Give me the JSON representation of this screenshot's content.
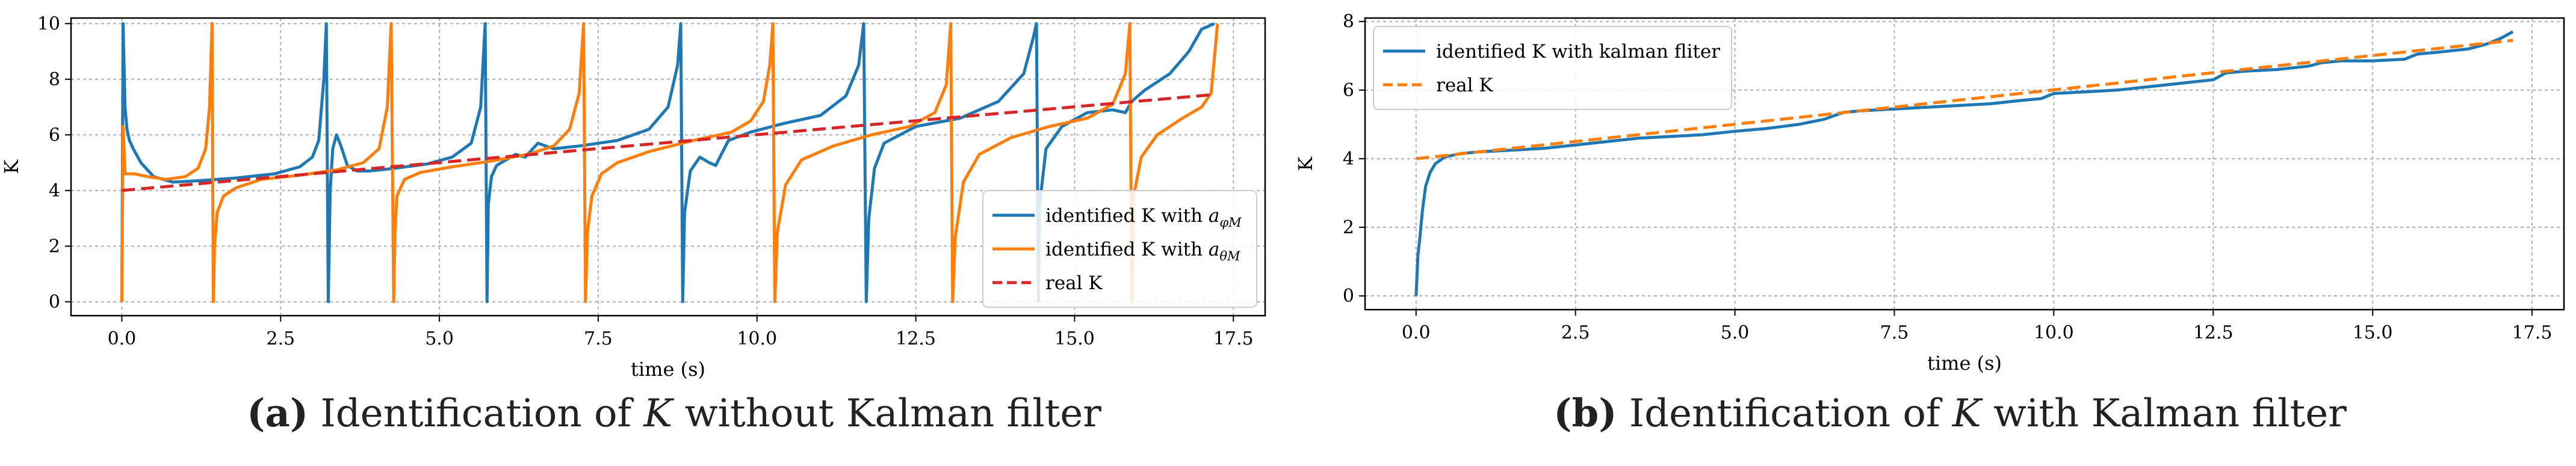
{
  "chart_data": [
    {
      "id": "a",
      "type": "line",
      "xlabel": "time (s)",
      "ylabel": "K",
      "xlim": [
        -0.8,
        18.0
      ],
      "ylim": [
        -0.5,
        10.2
      ],
      "xticks": [
        0.0,
        2.5,
        5.0,
        7.5,
        10.0,
        12.5,
        15.0,
        17.5
      ],
      "xtick_labels": [
        "0.0",
        "2.5",
        "5.0",
        "7.5",
        "10.0",
        "12.5",
        "15.0",
        "17.5"
      ],
      "yticks": [
        0,
        2,
        4,
        6,
        8,
        10
      ],
      "ytick_labels": [
        "0",
        "2",
        "4",
        "6",
        "8",
        "10"
      ],
      "grid": true,
      "legend_position": "bottom-right",
      "series": [
        {
          "name": "identified K with a_φM",
          "legend_main": "identified K with ",
          "legend_math": "a",
          "legend_sub": "φM",
          "color": "#1f77b4",
          "style": "solid",
          "x": [
            0.0,
            0.02,
            0.05,
            0.08,
            0.12,
            0.18,
            0.3,
            0.5,
            0.8,
            1.2,
            1.8,
            2.4,
            2.8,
            3.0,
            3.1,
            3.18,
            3.22,
            3.25,
            3.28,
            3.32,
            3.38,
            3.45,
            3.55,
            3.7,
            3.9,
            4.3,
            4.8,
            5.2,
            5.5,
            5.65,
            5.72,
            5.75,
            5.77,
            5.82,
            5.9,
            6.05,
            6.2,
            6.35,
            6.55,
            6.8,
            7.2,
            7.8,
            8.3,
            8.6,
            8.75,
            8.8,
            8.83,
            8.86,
            8.95,
            9.1,
            9.25,
            9.35,
            9.55,
            9.9,
            10.4,
            11.0,
            11.4,
            11.6,
            11.68,
            11.72,
            11.76,
            11.85,
            12.0,
            12.5,
            13.2,
            13.8,
            14.2,
            14.35,
            14.4,
            14.43,
            14.45,
            14.55,
            14.8,
            15.2,
            15.6,
            15.8,
            15.9,
            16.1,
            16.5,
            16.8,
            17.0,
            17.2
          ],
          "y": [
            0.0,
            10.0,
            7.0,
            6.2,
            5.8,
            5.5,
            5.0,
            4.5,
            4.3,
            4.35,
            4.45,
            4.6,
            4.85,
            5.2,
            5.8,
            8.0,
            10.0,
            0.0,
            4.0,
            5.5,
            6.0,
            5.6,
            4.9,
            4.7,
            4.7,
            4.8,
            4.95,
            5.2,
            5.7,
            7.0,
            10.0,
            0.0,
            3.5,
            4.5,
            4.9,
            5.1,
            5.3,
            5.2,
            5.7,
            5.5,
            5.6,
            5.8,
            6.2,
            7.0,
            8.5,
            10.0,
            0.0,
            3.2,
            4.7,
            5.2,
            5.0,
            4.9,
            5.8,
            6.1,
            6.4,
            6.7,
            7.4,
            8.5,
            10.0,
            0.0,
            3.0,
            4.8,
            5.7,
            6.3,
            6.6,
            7.2,
            8.2,
            9.5,
            10.0,
            0.0,
            3.5,
            5.5,
            6.3,
            6.8,
            6.9,
            6.8,
            7.2,
            7.6,
            8.2,
            9.0,
            9.8,
            10.0
          ]
        },
        {
          "name": "identified K with a_θM",
          "legend_main": "identified K with ",
          "legend_math": "a",
          "legend_sub": "θM",
          "color": "#ff7f0e",
          "style": "solid",
          "x": [
            0.0,
            0.02,
            0.05,
            0.1,
            0.2,
            0.4,
            0.7,
            1.0,
            1.2,
            1.32,
            1.38,
            1.42,
            1.44,
            1.46,
            1.5,
            1.6,
            1.8,
            2.2,
            2.8,
            3.4,
            3.8,
            4.05,
            4.18,
            4.24,
            4.28,
            4.3,
            4.33,
            4.45,
            4.7,
            5.2,
            5.8,
            6.4,
            6.8,
            7.05,
            7.2,
            7.27,
            7.3,
            7.33,
            7.4,
            7.55,
            7.8,
            8.3,
            9.0,
            9.6,
            9.9,
            10.1,
            10.2,
            10.25,
            10.28,
            10.32,
            10.45,
            10.7,
            11.2,
            11.8,
            12.4,
            12.8,
            12.98,
            13.05,
            13.08,
            13.12,
            13.25,
            13.5,
            14.0,
            14.6,
            15.2,
            15.6,
            15.8,
            15.87,
            15.9,
            15.93,
            16.05,
            16.3,
            16.7,
            17.0,
            17.15,
            17.25
          ],
          "y": [
            0.0,
            6.3,
            4.6,
            4.6,
            4.6,
            4.5,
            4.4,
            4.5,
            4.8,
            5.5,
            7.0,
            10.0,
            0.0,
            2.0,
            3.2,
            3.8,
            4.1,
            4.4,
            4.55,
            4.75,
            5.0,
            5.5,
            7.0,
            10.0,
            0.0,
            2.5,
            3.8,
            4.4,
            4.65,
            4.85,
            5.05,
            5.3,
            5.6,
            6.2,
            7.5,
            10.0,
            0.0,
            2.5,
            3.8,
            4.6,
            5.0,
            5.4,
            5.8,
            6.1,
            6.5,
            7.2,
            8.5,
            10.0,
            0.0,
            2.5,
            4.2,
            5.1,
            5.6,
            6.0,
            6.3,
            6.8,
            7.8,
            10.0,
            0.0,
            2.3,
            4.3,
            5.3,
            5.9,
            6.3,
            6.6,
            7.1,
            8.2,
            10.0,
            0.0,
            3.8,
            5.2,
            6.0,
            6.6,
            7.0,
            7.5,
            10.0
          ]
        },
        {
          "name": "real K",
          "legend_main": "real K",
          "color": "#d62728",
          "style": "dashed",
          "x": [
            0.0,
            17.2
          ],
          "y": [
            4.0,
            7.45
          ]
        }
      ]
    },
    {
      "id": "b",
      "type": "line",
      "xlabel": "time (s)",
      "ylabel": "K",
      "xlim": [
        -0.8,
        18.0
      ],
      "ylim": [
        -0.4,
        8.1
      ],
      "xticks": [
        0.0,
        2.5,
        5.0,
        7.5,
        10.0,
        12.5,
        15.0,
        17.5
      ],
      "xtick_labels": [
        "0.0",
        "2.5",
        "5.0",
        "7.5",
        "10.0",
        "12.5",
        "15.0",
        "17.5"
      ],
      "yticks": [
        0,
        2,
        4,
        6,
        8
      ],
      "ytick_labels": [
        "0",
        "2",
        "4",
        "6",
        "8"
      ],
      "grid": true,
      "legend_position": "top-left",
      "series": [
        {
          "name": "identified K with kalman fliter",
          "legend_main": "identified K with kalman fliter",
          "color": "#1f77b4",
          "style": "solid",
          "x": [
            0.0,
            0.03,
            0.06,
            0.1,
            0.15,
            0.22,
            0.3,
            0.45,
            0.7,
            1.0,
            1.5,
            2.0,
            2.5,
            3.0,
            3.5,
            4.0,
            4.5,
            5.0,
            5.5,
            6.0,
            6.4,
            6.7,
            7.0,
            7.5,
            8.0,
            8.5,
            9.0,
            9.5,
            9.8,
            10.0,
            10.5,
            11.0,
            11.5,
            12.0,
            12.5,
            12.7,
            13.0,
            13.5,
            14.0,
            14.2,
            14.5,
            15.0,
            15.5,
            15.7,
            16.0,
            16.5,
            16.8,
            17.0,
            17.2
          ],
          "y": [
            0.0,
            1.2,
            1.7,
            2.5,
            3.2,
            3.6,
            3.85,
            4.05,
            4.15,
            4.2,
            4.25,
            4.3,
            4.4,
            4.5,
            4.6,
            4.65,
            4.7,
            4.8,
            4.88,
            5.0,
            5.15,
            5.35,
            5.4,
            5.45,
            5.5,
            5.55,
            5.6,
            5.7,
            5.75,
            5.9,
            5.95,
            6.0,
            6.1,
            6.2,
            6.3,
            6.5,
            6.55,
            6.6,
            6.7,
            6.8,
            6.85,
            6.85,
            6.9,
            7.05,
            7.1,
            7.2,
            7.35,
            7.5,
            7.7
          ]
        },
        {
          "name": "real K",
          "legend_main": "real K",
          "color": "#ff7f0e",
          "style": "dashed",
          "x": [
            0.0,
            17.2
          ],
          "y": [
            4.0,
            7.45
          ]
        }
      ]
    }
  ],
  "captions": {
    "a": {
      "label": "(a)",
      "prefix": "Identification of ",
      "var": "K",
      "suffix": " without Kalman filter"
    },
    "b": {
      "label": "(b)",
      "prefix": "Identification of ",
      "var": "K",
      "suffix": " with Kalman filter"
    }
  }
}
